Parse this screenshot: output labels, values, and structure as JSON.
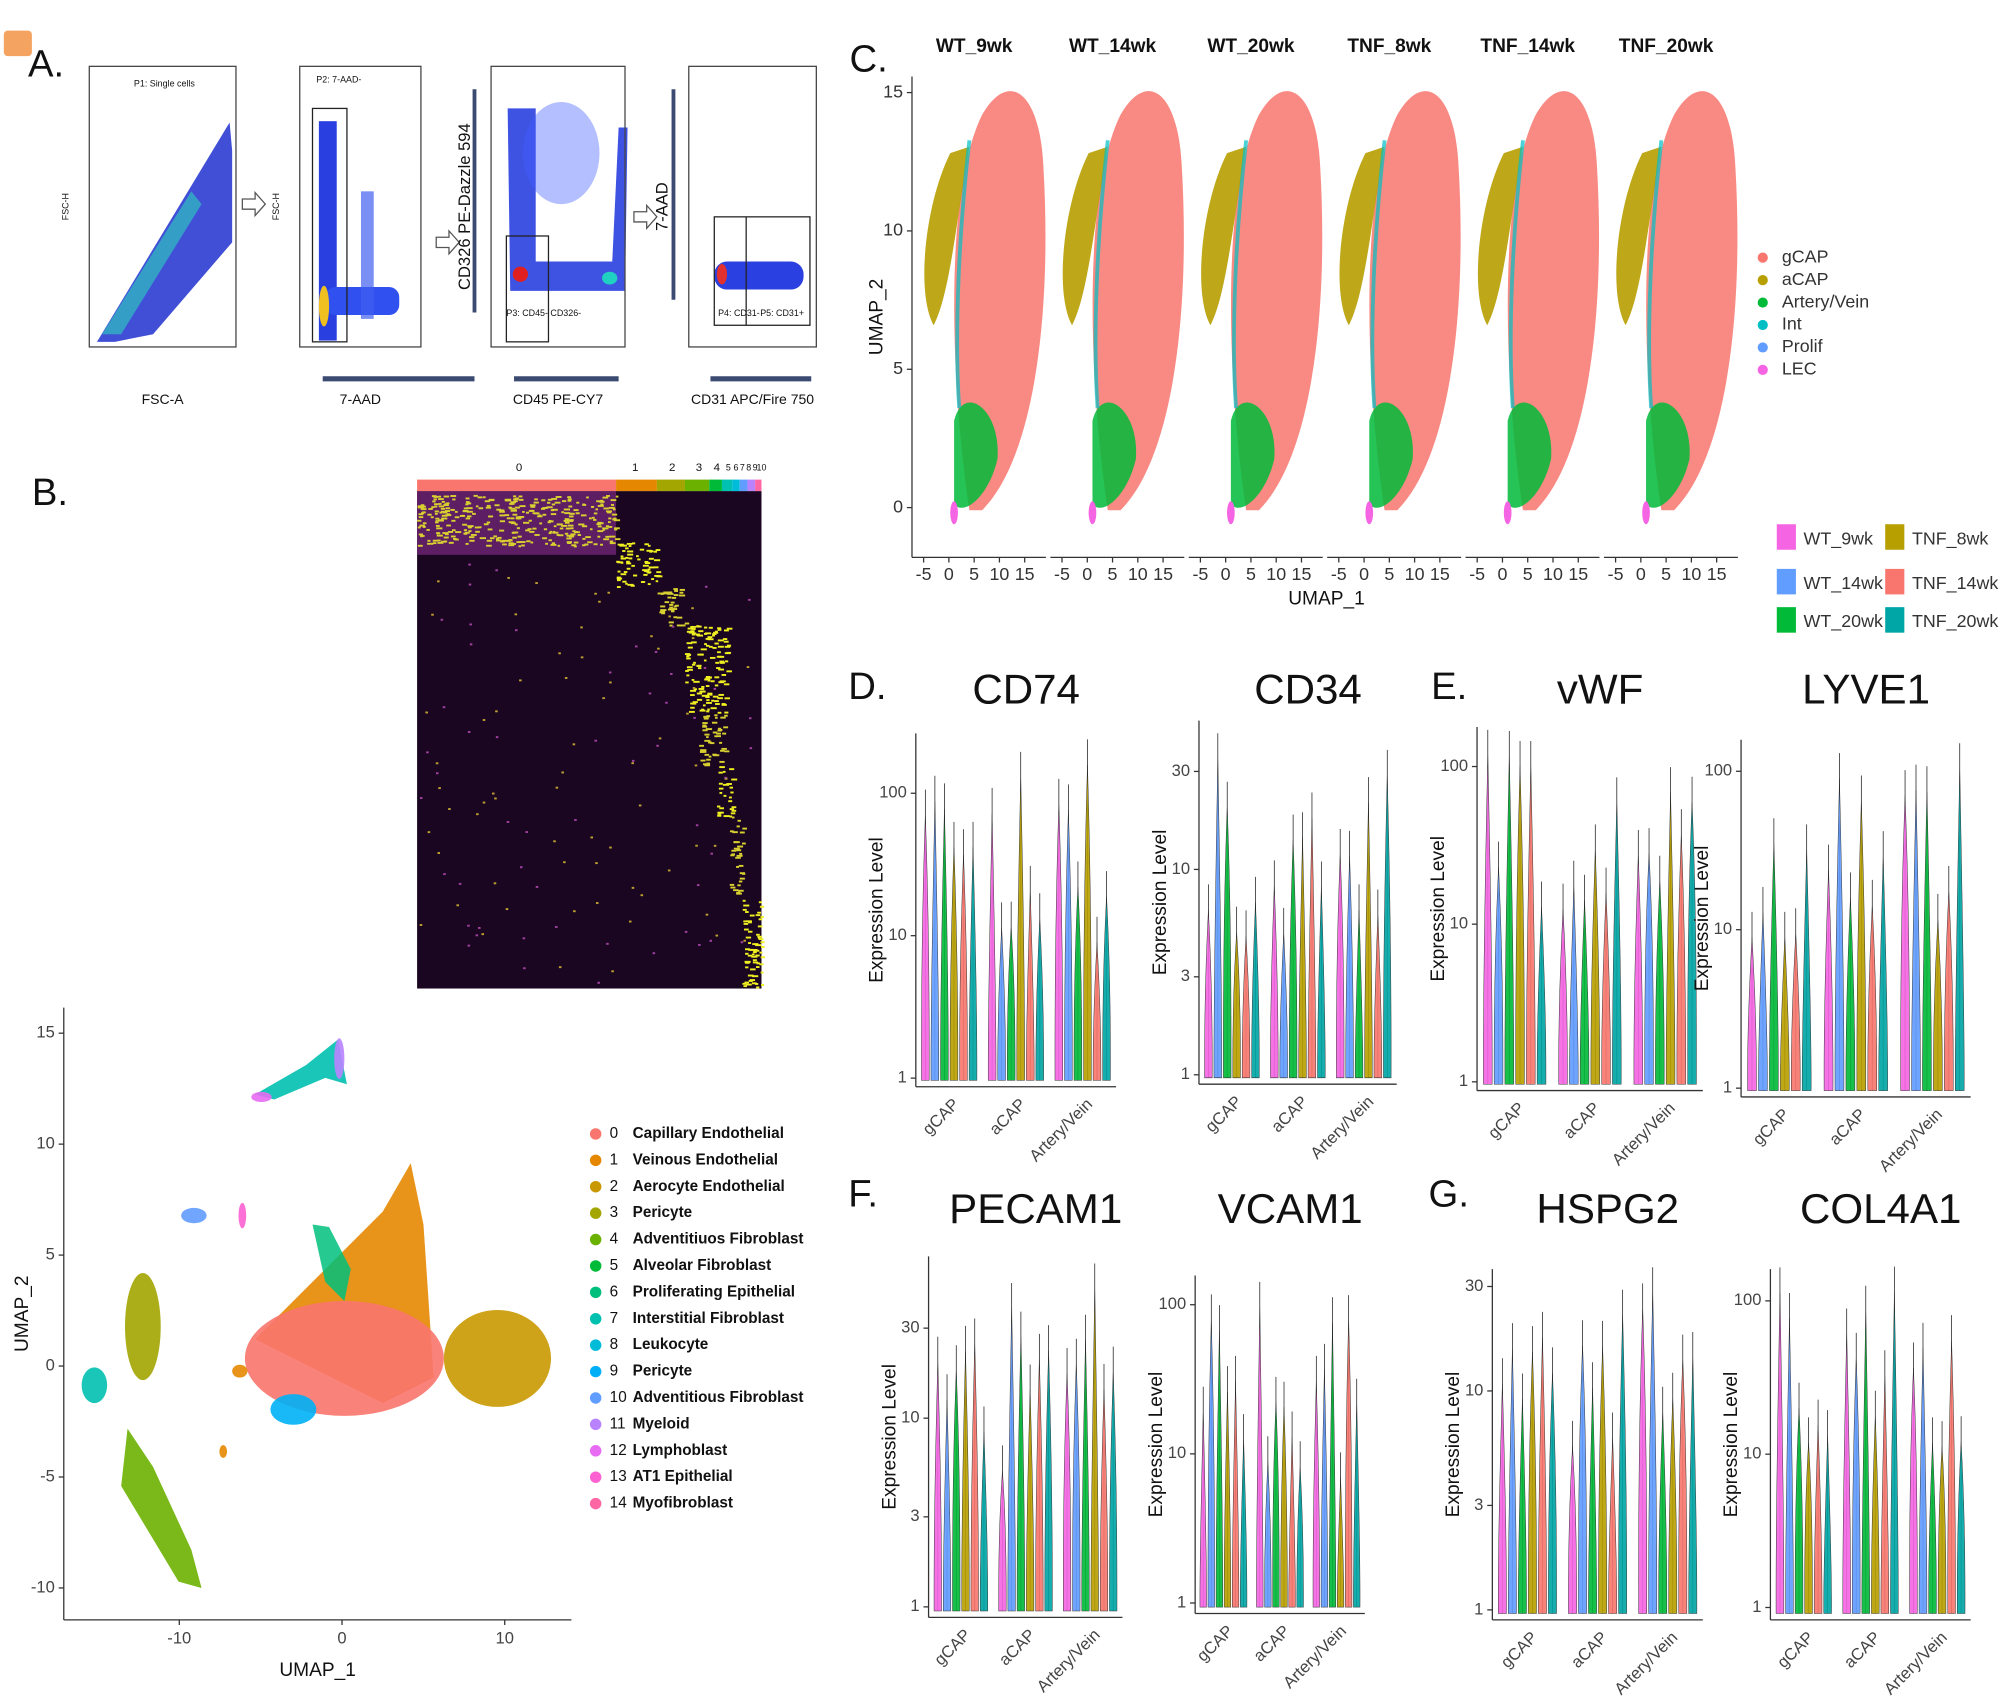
{
  "figure": {
    "panel_labels": [
      "A.",
      "B.",
      "C.",
      "D.",
      "E.",
      "F.",
      "G."
    ],
    "facs": {
      "plots": [
        {
          "gates": [
            "P1: Single cells"
          ],
          "x_label": "FSC-A",
          "y_label": "FSC-H"
        },
        {
          "gates": [
            "P2: 7-AAD-"
          ],
          "x_label": "7-AAD",
          "y_label": "FSC-H"
        },
        {
          "gates": [
            "P3: CD45- CD326-"
          ],
          "x_label": "CD45 PE-CY7",
          "y_label": "CD326 PE-Dazzle 594"
        },
        {
          "gates": [
            "P4: CD31-",
            "P5: CD31+"
          ],
          "x_label": "CD31 APC/Fire 750",
          "y_label": "7-AAD"
        }
      ]
    },
    "heatmap": {
      "clusters": [
        "0",
        "1",
        "2",
        "3",
        "4",
        "5",
        "6",
        "7",
        "8",
        "9",
        "10"
      ]
    },
    "umap": {
      "x_label": "UMAP_1",
      "y_label": "UMAP_2",
      "xlim": [
        -17.1,
        14.1
      ],
      "ylim": [
        -11.44,
        16.15
      ],
      "xticks": [
        -10,
        0,
        10
      ],
      "yticks": [
        -10,
        -5,
        0,
        5,
        10,
        15
      ],
      "legend": [
        {
          "id": 0,
          "name": "Capillary Endothelial",
          "color": "#F8766D"
        },
        {
          "id": 1,
          "name": "Veinous Endothelial",
          "color": "#E58700"
        },
        {
          "id": 2,
          "name": "Aerocyte Endothelial",
          "color": "#C99800"
        },
        {
          "id": 3,
          "name": "Pericyte",
          "color": "#A3A500"
        },
        {
          "id": 4,
          "name": "Adventitiuos Fibroblast",
          "color": "#6BB100"
        },
        {
          "id": 5,
          "name": "Alveolar Fibroblast",
          "color": "#00BA38"
        },
        {
          "id": 6,
          "name": "Proliferating Epithelial",
          "color": "#00BF7D"
        },
        {
          "id": 7,
          "name": "Interstitial Fibroblast",
          "color": "#00C0AF"
        },
        {
          "id": 8,
          "name": "Leukocyte",
          "color": "#00BCD8"
        },
        {
          "id": 9,
          "name": "Pericyte",
          "color": "#00B0F6"
        },
        {
          "id": 10,
          "name": "Adventitious Fibroblast",
          "color": "#619CFF"
        },
        {
          "id": 11,
          "name": "Myeloid",
          "color": "#B983FF"
        },
        {
          "id": 12,
          "name": "Lymphoblast",
          "color": "#E76BF3"
        },
        {
          "id": 13,
          "name": "AT1 Epithelial",
          "color": "#FD61D1"
        },
        {
          "id": 14,
          "name": "Myofibroblast",
          "color": "#FF67A4"
        }
      ]
    },
    "subsets": {
      "titles": [
        "WT_9wk",
        "WT_14wk",
        "WT_20wk",
        "TNF_8wk",
        "TNF_14wk",
        "TNF_20wk"
      ],
      "x_label": "UMAP_1",
      "y_label": "UMAP_2",
      "xlim": [
        -7.3,
        19.2
      ],
      "ylim": [
        -1.8,
        15.58
      ],
      "xticks": [
        -5,
        0,
        5,
        10,
        15
      ],
      "yticks": [
        0,
        5,
        10,
        15
      ],
      "cell_types": [
        {
          "name": "gCAP",
          "color": "#F8766D"
        },
        {
          "name": "aCAP",
          "color": "#B79F00"
        },
        {
          "name": "Artery/Vein",
          "color": "#00BA38"
        },
        {
          "name": "Int",
          "color": "#00BFC4"
        },
        {
          "name": "Prolif",
          "color": "#619CFF"
        },
        {
          "name": "LEC",
          "color": "#F564E3"
        }
      ],
      "samples": [
        {
          "name": "WT_9wk",
          "color": "#F564E3"
        },
        {
          "name": "WT_14wk",
          "color": "#619CFF"
        },
        {
          "name": "WT_20wk",
          "color": "#00BA38"
        },
        {
          "name": "TNF_8wk",
          "color": "#B79F00"
        },
        {
          "name": "TNF_14wk",
          "color": "#F8766D"
        },
        {
          "name": "TNF_20wk",
          "color": "#00A5A5"
        }
      ]
    },
    "violins": [
      {
        "title": "CD74",
        "y_label": "Expression Level",
        "categories": [
          "gCAP",
          "aCAP",
          "Artery/Vein"
        ],
        "log": true,
        "ylim": [
          0.87,
          263
        ],
        "yticks": [
          1,
          10,
          100
        ]
      },
      {
        "title": "CD34",
        "y_label": "Expression Level",
        "categories": [
          "gCAP",
          "aCAP",
          "Artery/Vein"
        ],
        "log": true,
        "ylim": [
          0.9,
          53
        ],
        "yticks": [
          1,
          3,
          10,
          30
        ]
      },
      {
        "title": "vWF",
        "y_label": "Expression Level",
        "categories": [
          "gCAP",
          "aCAP",
          "Artery/Vein"
        ],
        "log": true,
        "ylim": [
          0.88,
          178
        ],
        "yticks": [
          1,
          10,
          100
        ]
      },
      {
        "title": "LYVE1",
        "y_label": "Expression Level",
        "categories": [
          "gCAP",
          "aCAP",
          "Artery/Vein"
        ],
        "log": true,
        "ylim": [
          0.88,
          158
        ],
        "yticks": [
          1,
          10,
          100
        ]
      },
      {
        "title": "PECAM1",
        "y_label": "Expression Level",
        "categories": [
          "gCAP",
          "aCAP",
          "Artery/Vein"
        ],
        "log": true,
        "ylim": [
          0.88,
          72
        ],
        "yticks": [
          1,
          3,
          10,
          30
        ]
      },
      {
        "title": "VCAM1",
        "y_label": "Expression Level",
        "categories": [
          "gCAP",
          "aCAP",
          "Artery/Vein"
        ],
        "log": true,
        "ylim": [
          0.85,
          157
        ],
        "yticks": [
          1,
          10,
          100
        ]
      },
      {
        "title": "HSPG2",
        "y_label": "Expression Level",
        "categories": [
          "gCAP",
          "aCAP",
          "Artery/Vein"
        ],
        "log": true,
        "ylim": [
          0.9,
          36
        ],
        "yticks": [
          1,
          3,
          10,
          30
        ]
      },
      {
        "title": "COL4A1",
        "y_label": "Expression Level",
        "categories": [
          "gCAP",
          "aCAP",
          "Artery/Vein"
        ],
        "log": true,
        "ylim": [
          0.83,
          161
        ],
        "yticks": [
          1,
          10,
          100
        ]
      }
    ]
  }
}
